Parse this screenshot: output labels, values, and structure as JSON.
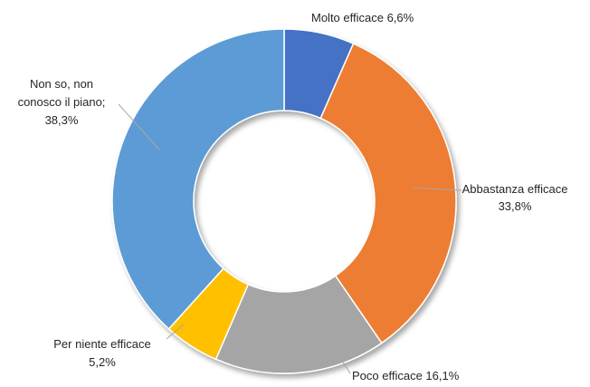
{
  "chart_data": {
    "type": "pie",
    "variant": "donut",
    "title": "",
    "start_angle_deg": 0,
    "direction": "clockwise",
    "legend": "none",
    "slices": [
      {
        "label": "Molto efficace",
        "value": 6.6,
        "value_text": "6,6%",
        "color": "#4472c4",
        "label_text": [
          "Molto efficace 6,6%"
        ]
      },
      {
        "label": "Abbastanza efficace",
        "value": 33.8,
        "value_text": "33,8%",
        "color": "#ed7d31",
        "label_text": [
          "Abbastanza efficace",
          "33,8%"
        ]
      },
      {
        "label": "Poco efficace",
        "value": 16.1,
        "value_text": "16,1%",
        "color": "#a5a5a5",
        "label_text": [
          "Poco efficace 16,1%"
        ]
      },
      {
        "label": "Per niente efficace",
        "value": 5.2,
        "value_text": "5,2%",
        "color": "#ffc000",
        "label_text": [
          "Per niente efficace",
          "5,2%"
        ]
      },
      {
        "label": "Non so, non conosco il piano",
        "value": 38.3,
        "value_text": "38,3%",
        "color": "#5b9bd5",
        "label_text": [
          "Non so, non",
          "conosco il piano;",
          "38,3%"
        ]
      }
    ]
  }
}
